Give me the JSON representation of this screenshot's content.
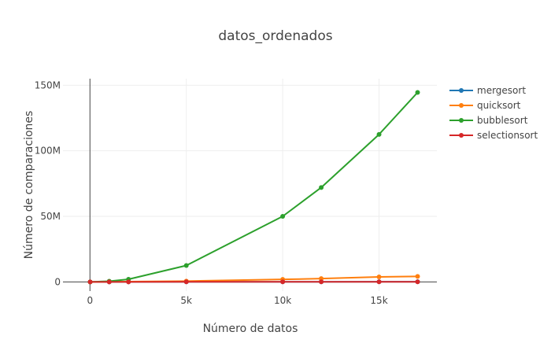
{
  "chart_data": {
    "type": "line",
    "title": "datos_ordenados",
    "xlabel": "Número de datos",
    "ylabel": "Número de comparaciones",
    "x": [
      10,
      1000,
      2000,
      5000,
      10000,
      12000,
      15000,
      17000
    ],
    "xlim": [
      -1400,
      18000
    ],
    "ylim": [
      -7000000,
      155000000
    ],
    "x_ticks": [
      {
        "value": 0,
        "label": "0"
      },
      {
        "value": 5000,
        "label": "5k"
      },
      {
        "value": 10000,
        "label": "10k"
      },
      {
        "value": 15000,
        "label": "15k"
      }
    ],
    "y_ticks": [
      {
        "value": 0,
        "label": "0"
      },
      {
        "value": 50000000,
        "label": "50M"
      },
      {
        "value": 100000000,
        "label": "100M"
      },
      {
        "value": 150000000,
        "label": "150M"
      }
    ],
    "grid": true,
    "legend_position": "top-right",
    "series": [
      {
        "name": "mergesort",
        "color": "#1f77b4",
        "values": [
          20,
          5000,
          11000,
          32000,
          69000,
          84000,
          107000,
          123000
        ]
      },
      {
        "name": "quicksort",
        "color": "#ff7f0e",
        "values": [
          100,
          110000,
          220000,
          600000,
          1900000,
          2500000,
          3800000,
          4200000
        ]
      },
      {
        "name": "bubblesort",
        "color": "#2ca02c",
        "values": [
          50,
          500000,
          2000000,
          12500000,
          50000000,
          72000000,
          112500000,
          144500000
        ]
      },
      {
        "name": "selectionsort",
        "color": "#d62728",
        "values": [
          50,
          5000,
          10000,
          25000,
          50000,
          60000,
          75000,
          85000
        ]
      }
    ]
  }
}
